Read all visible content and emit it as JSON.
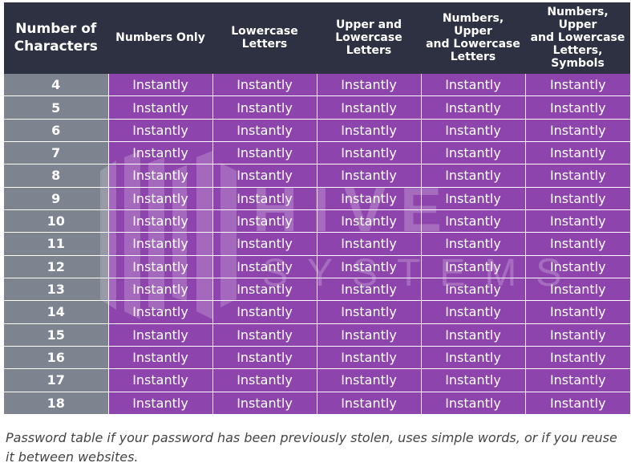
{
  "table": {
    "headers": [
      [
        "Number of",
        "Characters"
      ],
      [
        "Numbers Only"
      ],
      [
        "Lowercase",
        "Letters"
      ],
      [
        "Upper and",
        "Lowercase",
        "Letters"
      ],
      [
        "Numbers, Upper",
        "and Lowercase",
        "Letters"
      ],
      [
        "Numbers, Upper",
        "and Lowercase",
        "Letters, Symbols"
      ]
    ],
    "rows": [
      {
        "chars": "4",
        "cells": [
          "Instantly",
          "Instantly",
          "Instantly",
          "Instantly",
          "Instantly"
        ]
      },
      {
        "chars": "5",
        "cells": [
          "Instantly",
          "Instantly",
          "Instantly",
          "Instantly",
          "Instantly"
        ]
      },
      {
        "chars": "6",
        "cells": [
          "Instantly",
          "Instantly",
          "Instantly",
          "Instantly",
          "Instantly"
        ]
      },
      {
        "chars": "7",
        "cells": [
          "Instantly",
          "Instantly",
          "Instantly",
          "Instantly",
          "Instantly"
        ]
      },
      {
        "chars": "8",
        "cells": [
          "Instantly",
          "Instantly",
          "Instantly",
          "Instantly",
          "Instantly"
        ]
      },
      {
        "chars": "9",
        "cells": [
          "Instantly",
          "Instantly",
          "Instantly",
          "Instantly",
          "Instantly"
        ]
      },
      {
        "chars": "10",
        "cells": [
          "Instantly",
          "Instantly",
          "Instantly",
          "Instantly",
          "Instantly"
        ]
      },
      {
        "chars": "11",
        "cells": [
          "Instantly",
          "Instantly",
          "Instantly",
          "Instantly",
          "Instantly"
        ]
      },
      {
        "chars": "12",
        "cells": [
          "Instantly",
          "Instantly",
          "Instantly",
          "Instantly",
          "Instantly"
        ]
      },
      {
        "chars": "13",
        "cells": [
          "Instantly",
          "Instantly",
          "Instantly",
          "Instantly",
          "Instantly"
        ]
      },
      {
        "chars": "14",
        "cells": [
          "Instantly",
          "Instantly",
          "Instantly",
          "Instantly",
          "Instantly"
        ]
      },
      {
        "chars": "15",
        "cells": [
          "Instantly",
          "Instantly",
          "Instantly",
          "Instantly",
          "Instantly"
        ]
      },
      {
        "chars": "16",
        "cells": [
          "Instantly",
          "Instantly",
          "Instantly",
          "Instantly",
          "Instantly"
        ]
      },
      {
        "chars": "17",
        "cells": [
          "Instantly",
          "Instantly",
          "Instantly",
          "Instantly",
          "Instantly"
        ]
      },
      {
        "chars": "18",
        "cells": [
          "Instantly",
          "Instantly",
          "Instantly",
          "Instantly",
          "Instantly"
        ]
      }
    ]
  },
  "watermark": {
    "word1": "HIVE",
    "word2": "SYSTEMS"
  },
  "caption": "Password table if your password has been previously stolen, uses simple words, or if you reuse it between websites.",
  "colors": {
    "header_bg": "#2d3142",
    "row_header_bg": "#7e8390",
    "cell_bg": "#8e44ad",
    "text_light": "#ffffff",
    "caption_text": "#444444"
  }
}
